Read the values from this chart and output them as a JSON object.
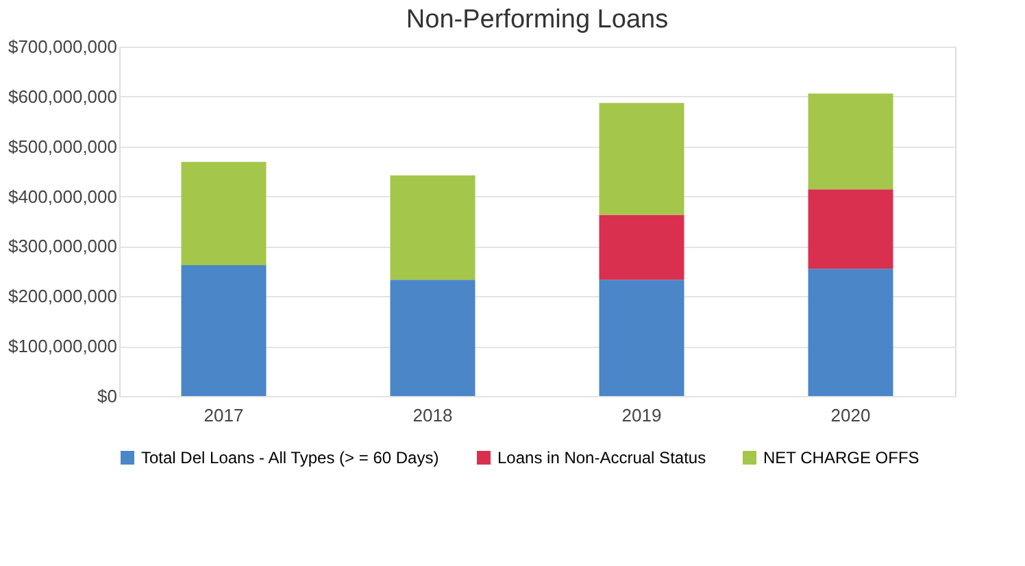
{
  "chart_data": {
    "type": "bar",
    "title": "Non-Performing Loans",
    "stacked": true,
    "categories": [
      "2017",
      "2018",
      "2019",
      "2020"
    ],
    "series": [
      {
        "name": "Total Del Loans - All Types (> = 60 Days)",
        "color": "#4a86c8",
        "values": [
          262000000,
          233000000,
          233000000,
          255000000
        ]
      },
      {
        "name": "Loans in Non-Accrual Status",
        "color": "#d9304f",
        "values": [
          null,
          null,
          130000000,
          159000000
        ]
      },
      {
        "name": "NET CHARGE OFFS",
        "color": "#a4c64a",
        "values": [
          207000000,
          209000000,
          224000000,
          192000000
        ]
      }
    ],
    "ylim": [
      0,
      700000000
    ],
    "yticks": [
      {
        "value": 0,
        "label": "$0"
      },
      {
        "value": 100000000,
        "label": "$100,000,000"
      },
      {
        "value": 200000000,
        "label": "$200,000,000"
      },
      {
        "value": 300000000,
        "label": "$300,000,000"
      },
      {
        "value": 400000000,
        "label": "$400,000,000"
      },
      {
        "value": 500000000,
        "label": "$500,000,000"
      },
      {
        "value": 600000000,
        "label": "$600,000,000"
      },
      {
        "value": 700000000,
        "label": "$700,000,000"
      }
    ],
    "grid": "y",
    "legend": "bottom"
  }
}
